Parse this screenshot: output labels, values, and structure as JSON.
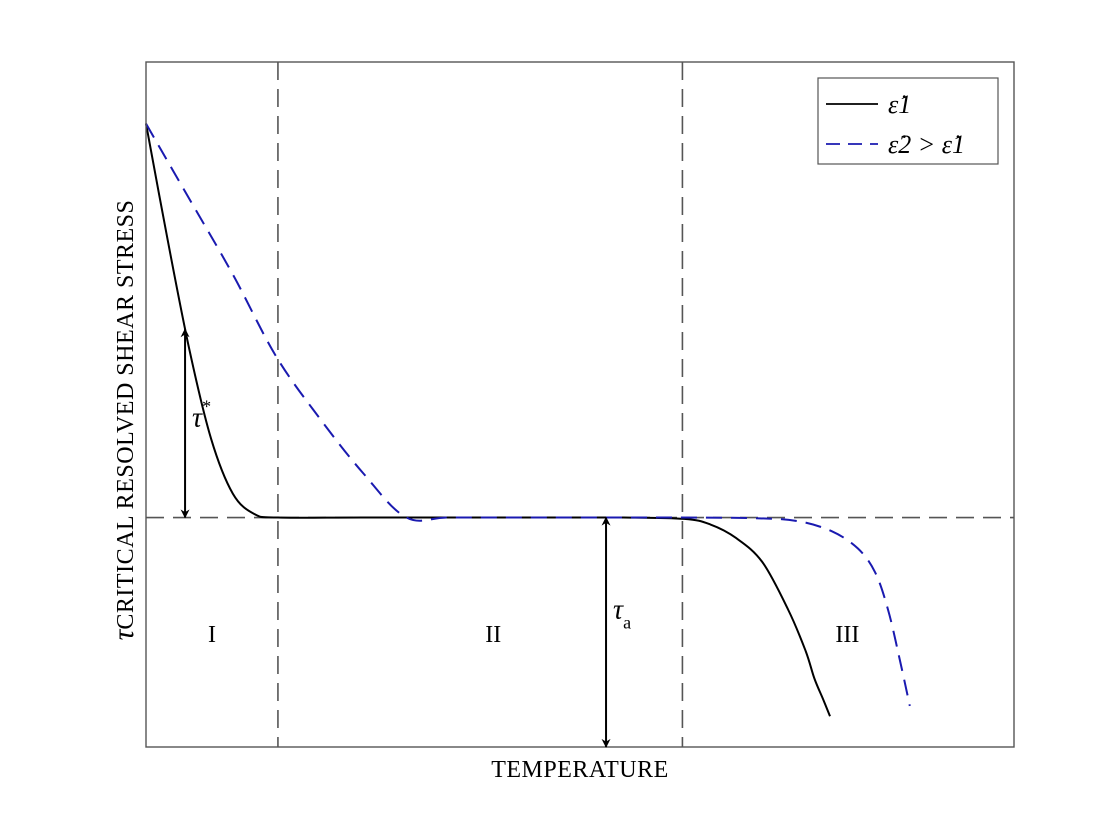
{
  "chart_data": {
    "type": "line",
    "xlabel": "TEMPERATURE",
    "ylabel": "CRITICAL RESOLVED SHEAR STRESS",
    "ylabel_symbol": "τ",
    "xlim": [
      0,
      1
    ],
    "ylim": [
      0,
      1
    ],
    "grid": false,
    "legend_position": "top-right",
    "series": [
      {
        "name": "ε̇₁",
        "legend_text": "ε̇1",
        "color": "#000000",
        "style": "solid",
        "x": [
          0.0,
          0.025,
          0.05,
          0.075,
          0.1,
          0.125,
          0.152,
          0.25,
          0.4,
          0.55,
          0.62,
          0.65,
          0.68,
          0.71,
          0.74,
          0.76,
          0.77,
          0.78,
          0.788
        ],
        "y": [
          0.91,
          0.74,
          0.58,
          0.45,
          0.37,
          0.34,
          0.335,
          0.335,
          0.335,
          0.335,
          0.333,
          0.325,
          0.305,
          0.27,
          0.2,
          0.14,
          0.1,
          0.07,
          0.045
        ]
      },
      {
        "name": "ε̇₂ > ε̇₁",
        "legend_text": "ε̇2 > ε̇1",
        "color": "#1a1ab0",
        "style": "dashed",
        "x": [
          0.0,
          0.05,
          0.1,
          0.15,
          0.2,
          0.25,
          0.3,
          0.35,
          0.45,
          0.6,
          0.7,
          0.75,
          0.79,
          0.82,
          0.84,
          0.855,
          0.868,
          0.88
        ],
        "y": [
          0.91,
          0.8,
          0.69,
          0.57,
          0.48,
          0.4,
          0.335,
          0.335,
          0.335,
          0.335,
          0.334,
          0.33,
          0.315,
          0.29,
          0.255,
          0.2,
          0.13,
          0.06
        ]
      }
    ],
    "reference_lines": {
      "horizontal_y": 0.335,
      "vertical_x": [
        0.152,
        0.618
      ]
    },
    "regions": [
      {
        "label": "I",
        "x": 0.076,
        "y": 0.165
      },
      {
        "label": "II",
        "x": 0.4,
        "y": 0.165
      },
      {
        "label": "III",
        "x": 0.808,
        "y": 0.165
      }
    ],
    "annotations": [
      {
        "label": "τ",
        "superscript": "*",
        "x": 0.045,
        "y_from": 0.335,
        "y_to": 0.61
      },
      {
        "label": "τ",
        "subscript": "a",
        "x": 0.53,
        "y_from": 0.0,
        "y_to": 0.335
      }
    ]
  }
}
